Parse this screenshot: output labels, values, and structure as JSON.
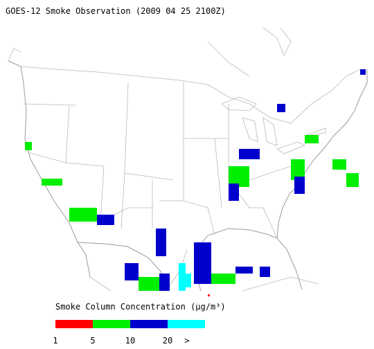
{
  "header": {
    "title": "GOES-12 Smoke Observation (2009 04 25  2100Z)"
  },
  "legend": {
    "title": "Smoke Column Concentration (μg/m³)",
    "bins": [
      {
        "color": "#ff0000"
      },
      {
        "color": "#00ee00"
      },
      {
        "color": "#0000cc"
      },
      {
        "color": "#00ffff"
      }
    ],
    "labels": [
      "1",
      "5",
      "10",
      "20",
      ">"
    ]
  }
}
